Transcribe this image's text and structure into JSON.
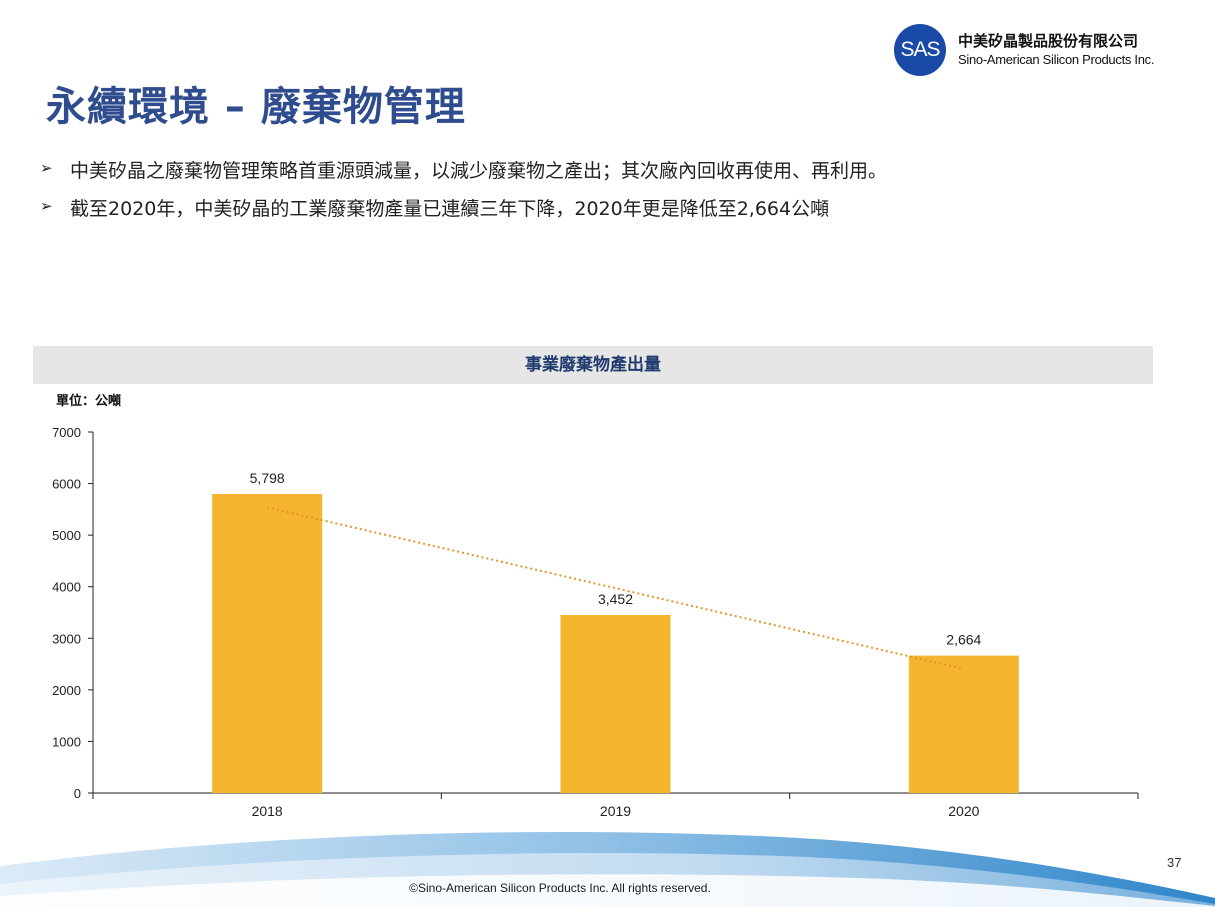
{
  "logo": {
    "mark": "SAS",
    "company_cn": "中美矽晶製品股份有限公司",
    "company_en": "Sino-American Silicon Products Inc."
  },
  "title": "永續環境 – 廢棄物管理",
  "bullets": [
    "中美矽晶之廢棄物管理策略首重源頭減量，以減少廢棄物之產出；其次廠內回收再使用、再利用。",
    "截至2020年，中美矽晶的工業廢棄物產量已連續三年下降，2020年更是降低至2,664公噸"
  ],
  "colors": {
    "title": "#2e4c8e",
    "bar": "#f5b52e",
    "trendline": "#e2952a",
    "header_bg": "#e6e6e6"
  },
  "chart_data": {
    "type": "bar",
    "title": "事業廢棄物產出量",
    "unit_label": "單位：公噸",
    "categories": [
      "2018",
      "2019",
      "2020"
    ],
    "values": [
      5798,
      3452,
      2664
    ],
    "data_labels": [
      "5,798",
      "3,452",
      "2,664"
    ],
    "ylim": [
      0,
      7000
    ],
    "yticks": [
      0,
      1000,
      2000,
      3000,
      4000,
      5000,
      6000,
      7000
    ],
    "trendline": "linear dotted",
    "grid": false,
    "legend": "none"
  },
  "page_number": "37",
  "footer": "©Sino-American Silicon Products Inc.  All rights reserved."
}
